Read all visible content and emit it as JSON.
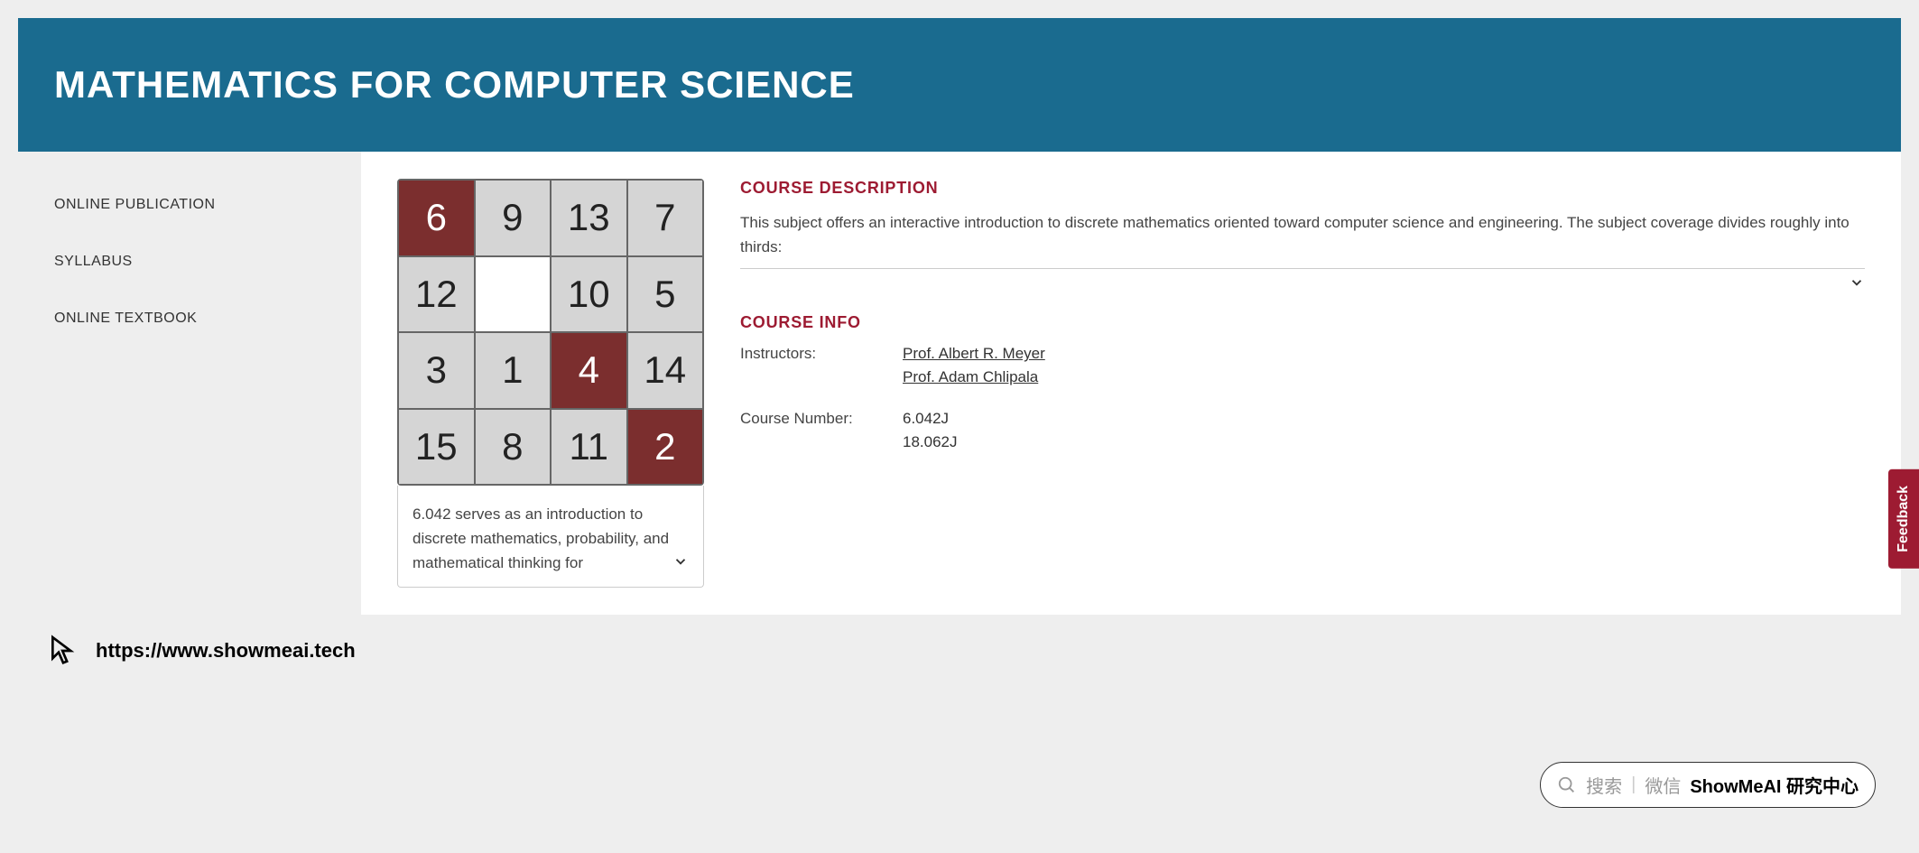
{
  "header": {
    "title": "MATHEMATICS FOR COMPUTER SCIENCE",
    "banner_bg": "#1a6b8f",
    "title_color": "#ffffff"
  },
  "sidebar": {
    "items": [
      {
        "label": "ONLINE PUBLICATION"
      },
      {
        "label": "SYLLABUS"
      },
      {
        "label": "ONLINE TEXTBOOK"
      }
    ]
  },
  "puzzle": {
    "cell_bg": "#d5d5d5",
    "dark_bg": "#7b2e2e",
    "blank_bg": "#ffffff",
    "border_color": "#666666",
    "cells": [
      {
        "v": "6",
        "dark": true
      },
      {
        "v": "9"
      },
      {
        "v": "13"
      },
      {
        "v": "7"
      },
      {
        "v": "12"
      },
      {
        "v": "",
        "blank": true
      },
      {
        "v": "10"
      },
      {
        "v": "5"
      },
      {
        "v": "3"
      },
      {
        "v": "1"
      },
      {
        "v": "4",
        "dark": true
      },
      {
        "v": "14"
      },
      {
        "v": "15"
      },
      {
        "v": "8"
      },
      {
        "v": "11"
      },
      {
        "v": "2",
        "dark": true
      }
    ],
    "caption": "6.042 serves as an introduction to discrete mathematics, probability, and mathematical thinking for"
  },
  "course": {
    "description_heading": "COURSE DESCRIPTION",
    "description_text": "This subject offers an interactive introduction to discrete mathematics oriented toward computer science and engineering. The subject coverage divides roughly into thirds:",
    "info_heading": "COURSE INFO",
    "heading_color": "#9d1b32",
    "fields": [
      {
        "label": "Instructors:",
        "values": [
          {
            "text": "Prof. Albert R. Meyer",
            "link": true
          },
          {
            "text": "Prof. Adam Chlipala",
            "link": true
          }
        ]
      },
      {
        "label": "Course Number:",
        "values": [
          {
            "text": "6.042J"
          },
          {
            "text": "18.062J"
          }
        ]
      }
    ]
  },
  "footer": {
    "url": "https://www.showmeai.tech"
  },
  "feedback_tab": {
    "label": "Feedback",
    "bg": "#9d1b32"
  },
  "search_pill": {
    "prompt": "搜索",
    "wechat": "微信",
    "brand": "ShowMeAI 研究中心"
  }
}
